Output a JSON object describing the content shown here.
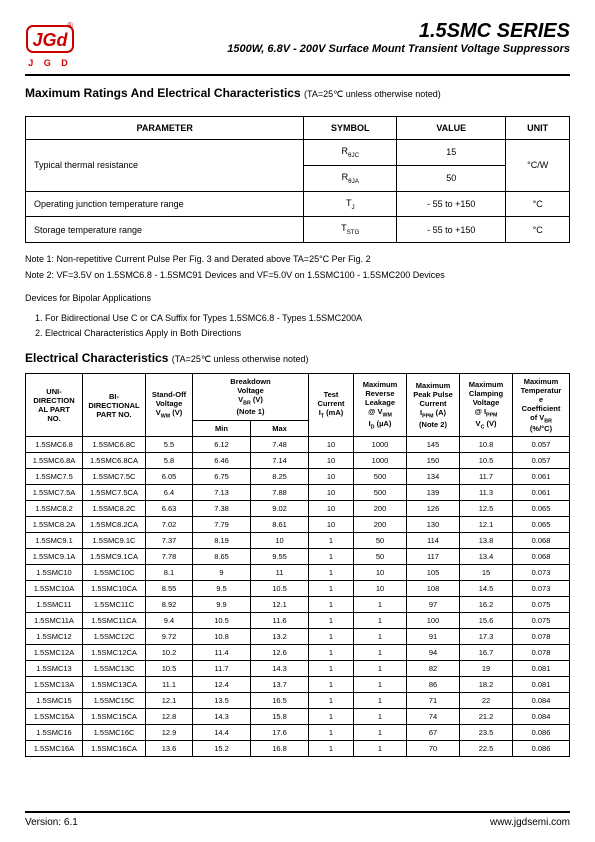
{
  "header": {
    "logo_text": "J G D",
    "series": "1.5SMC SERIES",
    "subtitle": "1500W, 6.8V - 200V Surface Mount Transient Voltage Suppressors"
  },
  "section1": {
    "title": "Maximum Ratings And Electrical Characteristics",
    "cond": "(TA=25℃ unless otherwise noted)"
  },
  "ratings": {
    "headers": [
      "PARAMETER",
      "SYMBOL",
      "VALUE",
      "UNIT"
    ],
    "rows": [
      {
        "param": "Typical thermal resistance",
        "symbol1": "RθJC",
        "value1": "15",
        "symbol2": "RθJA",
        "value2": "50",
        "unit": "°C/W",
        "rowspan": 2
      },
      {
        "param": "Operating junction temperature range",
        "symbol": "TJ",
        "value": "- 55 to +150",
        "unit": "°C"
      },
      {
        "param": "Storage temperature range",
        "symbol": "TSTG",
        "value": "- 55 to +150",
        "unit": "°C"
      }
    ]
  },
  "notes": {
    "n1": "Note 1: Non-repetitive Current Pulse Per Fig. 3 and Derated above TA=25°C Per Fig. 2",
    "n2": "Note 2: VF=3.5V on 1.5SMC6.8 - 1.5SMC91 Devices and VF=5.0V on 1.5SMC100 - 1.5SMC200 Devices",
    "bip_title": "Devices for Bipolar Applications",
    "bip1": "1. For Bidirectional Use C or CA Suffix for Types 1.5SMC6.8 - Types 1.5SMC200A",
    "bip2": "2. Electrical Characteristics Apply in Both Directions"
  },
  "section2": {
    "title": "Electrical Characteristics",
    "cond": "(TA=25℃ unless otherwise noted)"
  },
  "ec_headers": {
    "uni": "UNI-DIRECTIONAL PART NO.",
    "bi": "BI-DIRECTIONAL PART NO.",
    "vwm": "Stand-Off Voltage VWM (V)",
    "vbr": "Breakdown Voltage VBR (V) (Note 1)",
    "min": "Min",
    "max": "Max",
    "it": "Test Current IT (mA)",
    "id": "Maximum Reverse Leakage @ VWM ID (µA)",
    "ippm": "Maximum Peak Pulse Current IPPM (A) (Note 2)",
    "vc": "Maximum Clamping Voltage @ IPPM VC (V)",
    "tc": "Maximum Temperature Coefficient of VBR (%/°C)"
  },
  "ec_rows": [
    [
      "1.5SMC6.8",
      "1.5SMC6.8C",
      "5.5",
      "6.12",
      "7.48",
      "10",
      "1000",
      "145",
      "10.8",
      "0.057"
    ],
    [
      "1.5SMC6.8A",
      "1.5SMC6.8CA",
      "5.8",
      "6.46",
      "7.14",
      "10",
      "1000",
      "150",
      "10.5",
      "0.057"
    ],
    [
      "1.5SMC7.5",
      "1.5SMC7.5C",
      "6.05",
      "6.75",
      "8.25",
      "10",
      "500",
      "134",
      "11.7",
      "0.061"
    ],
    [
      "1.5SMC7.5A",
      "1.5SMC7.5CA",
      "6.4",
      "7.13",
      "7.88",
      "10",
      "500",
      "139",
      "11.3",
      "0.061"
    ],
    [
      "1.5SMC8.2",
      "1.5SMC8.2C",
      "6.63",
      "7.38",
      "9.02",
      "10",
      "200",
      "126",
      "12.5",
      "0.065"
    ],
    [
      "1.5SMC8.2A",
      "1.5SMC8.2CA",
      "7.02",
      "7.79",
      "8.61",
      "10",
      "200",
      "130",
      "12.1",
      "0.065"
    ],
    [
      "1.5SMC9.1",
      "1.5SMC9.1C",
      "7.37",
      "8.19",
      "10",
      "1",
      "50",
      "114",
      "13.8",
      "0.068"
    ],
    [
      "1.5SMC9.1A",
      "1.5SMC9.1CA",
      "7.78",
      "8.65",
      "9.55",
      "1",
      "50",
      "117",
      "13.4",
      "0.068"
    ],
    [
      "1.5SMC10",
      "1.5SMC10C",
      "8.1",
      "9",
      "11",
      "1",
      "10",
      "105",
      "15",
      "0.073"
    ],
    [
      "1.5SMC10A",
      "1.5SMC10CA",
      "8.55",
      "9.5",
      "10.5",
      "1",
      "10",
      "108",
      "14.5",
      "0.073"
    ],
    [
      "1.5SMC11",
      "1.5SMC11C",
      "8.92",
      "9.9",
      "12.1",
      "1",
      "1",
      "97",
      "16.2",
      "0.075"
    ],
    [
      "1.5SMC11A",
      "1.5SMC11CA",
      "9.4",
      "10.5",
      "11.6",
      "1",
      "1",
      "100",
      "15.6",
      "0.075"
    ],
    [
      "1.5SMC12",
      "1.5SMC12C",
      "9.72",
      "10.8",
      "13.2",
      "1",
      "1",
      "91",
      "17.3",
      "0.078"
    ],
    [
      "1.5SMC12A",
      "1.5SMC12CA",
      "10.2",
      "11.4",
      "12.6",
      "1",
      "1",
      "94",
      "16.7",
      "0.078"
    ],
    [
      "1.5SMC13",
      "1.5SMC13C",
      "10.5",
      "11.7",
      "14.3",
      "1",
      "1",
      "82",
      "19",
      "0.081"
    ],
    [
      "1.5SMC13A",
      "1.5SMC13CA",
      "11.1",
      "12.4",
      "13.7",
      "1",
      "1",
      "86",
      "18.2",
      "0.081"
    ],
    [
      "1.5SMC15",
      "1.5SMC15C",
      "12.1",
      "13.5",
      "16.5",
      "1",
      "1",
      "71",
      "22",
      "0.084"
    ],
    [
      "1.5SMC15A",
      "1.5SMC15CA",
      "12.8",
      "14.3",
      "15.8",
      "1",
      "1",
      "74",
      "21.2",
      "0.084"
    ],
    [
      "1.5SMC16",
      "1.5SMC16C",
      "12.9",
      "14.4",
      "17.6",
      "1",
      "1",
      "67",
      "23.5",
      "0.086"
    ],
    [
      "1.5SMC16A",
      "1.5SMC16CA",
      "13.6",
      "15.2",
      "16.8",
      "1",
      "1",
      "70",
      "22.5",
      "0.086"
    ]
  ],
  "footer": {
    "version": "Version: 6.1",
    "url": "www.jgdsemi.com"
  }
}
